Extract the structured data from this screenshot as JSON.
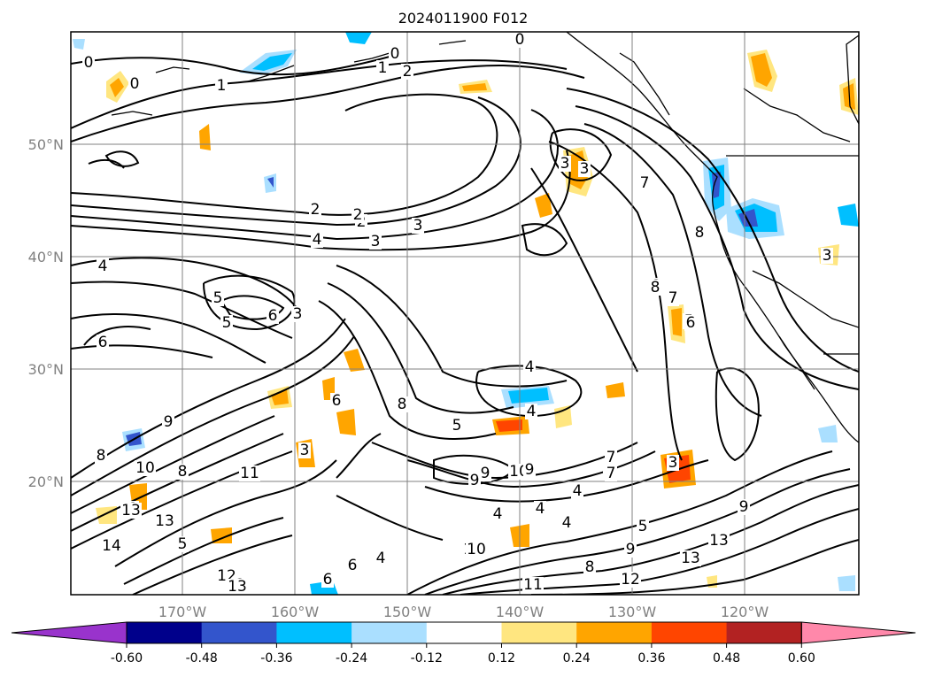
{
  "title": "2024011900 F012",
  "map": {
    "lon_labels": [
      "170°W",
      "160°W",
      "150°W",
      "140°W",
      "130°W",
      "120°W"
    ],
    "lat_labels": [
      "50°N",
      "40°N",
      "30°N",
      "20°N"
    ],
    "colors": {
      "background": "#ffffff",
      "grid": "#808080",
      "contour": "#000000"
    }
  },
  "contour_labels": [
    "0",
    "0",
    "0",
    "1",
    "1",
    "2",
    "0",
    "2",
    "2",
    "2",
    "3",
    "4",
    "3",
    "3",
    "4",
    "5",
    "5",
    "5",
    "6",
    "6",
    "7",
    "6",
    "8",
    "4",
    "4",
    "5",
    "6",
    "9",
    "8",
    "9",
    "10",
    "11",
    "8",
    "10",
    "9",
    "8",
    "12",
    "12",
    "13",
    "7",
    "4",
    "4",
    "4",
    "4",
    "5",
    "9",
    "7",
    "8",
    "10",
    "11",
    "12",
    "13",
    "13",
    "14",
    "13",
    "12",
    "13",
    "6",
    "6",
    "3",
    "3",
    "3",
    "3",
    "3",
    "9",
    "7",
    "8",
    "8",
    "7",
    "6",
    "6",
    "5",
    "4",
    "10",
    "9"
  ],
  "colorbar": {
    "ticks": [
      "-0.60",
      "-0.48",
      "-0.36",
      "-0.24",
      "-0.12",
      "0.12",
      "0.24",
      "0.36",
      "0.48",
      "0.60"
    ],
    "colors": [
      "#9933cc",
      "#00008b",
      "#3355cc",
      "#00bfff",
      "#aadfff",
      "#ffffff",
      "#ffe680",
      "#ffa500",
      "#ff4500",
      "#b22222",
      "#ff88aa"
    ]
  }
}
